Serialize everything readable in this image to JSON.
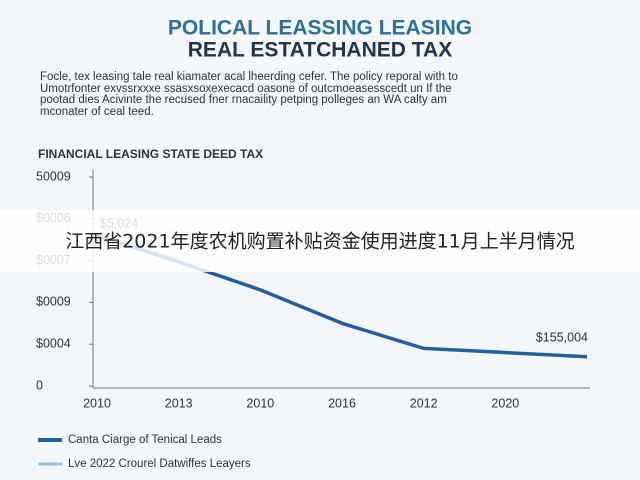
{
  "chart_data": {
    "type": "line",
    "title": [
      "POLICAL LEASSING LEASING",
      "REAL ESTATCHANED TAX"
    ],
    "description": [
      "Focle, tex leasing tale real kiamater acal lheerding cefer. The policy reporal with to",
      "Umotrfonter exvssrxxxe ssasxsoxexecacd oasone  of outcmoeasesscedt un If  the",
      "pootad dies Acivinte the recused fner rnacaility petping polleges an WA calty am",
      "mconater of ceal teed."
    ],
    "subtitle": "FINANCIAL LEASING STATE DEED TAX",
    "categories": [
      "2010",
      "2013",
      "2010",
      "2016",
      "2012",
      "2020",
      null
    ],
    "series": [
      {
        "name": "Canta Ciarge of Tenical Leads",
        "color": "#1f5fa8",
        "values": [
          3.6,
          2.97,
          2.3,
          1.5,
          0.9,
          0.8,
          0.7
        ]
      },
      {
        "name": "Lve 2022 Crourel Datwiffes Leayers",
        "color": "#8ec3e0",
        "values": [
          3.55,
          3.05,
          null,
          null,
          null,
          null,
          null
        ]
      }
    ],
    "annotations": [
      {
        "text": "$5,024"
      },
      {
        "text": "$155,004"
      }
    ],
    "ylim": [
      0,
      5
    ],
    "yticks": [
      {
        "value": 0,
        "label": "0"
      },
      {
        "value": 1,
        "label": "$0004"
      },
      {
        "value": 2,
        "label": "$0009"
      },
      {
        "value": 3,
        "label": "$0007"
      },
      {
        "value": 4,
        "label": "$0006"
      },
      {
        "value": 5,
        "label": "50009"
      }
    ]
  },
  "banner": "江西省2021年度农机购置补贴资金使用进度11月上半月情况"
}
